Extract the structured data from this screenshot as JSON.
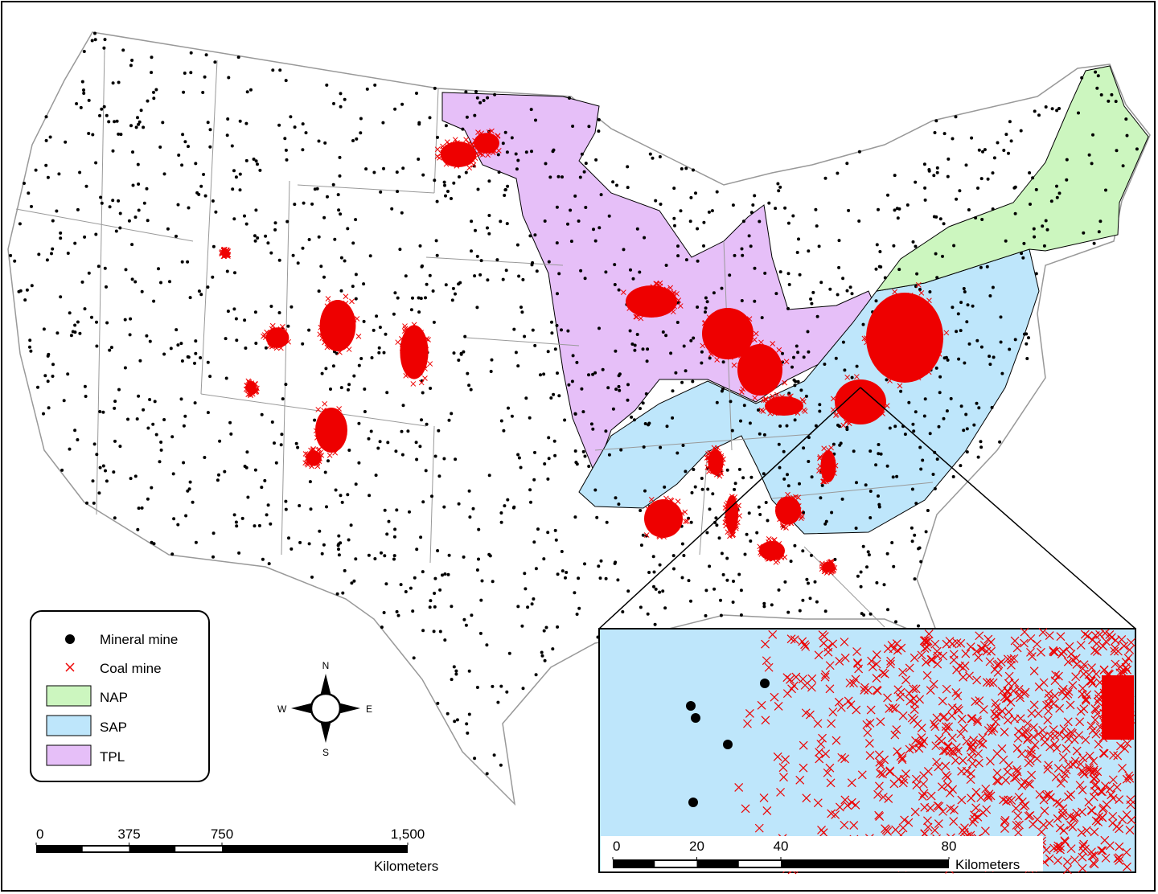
{
  "legend": [
    "Mineral mine",
    "Coal mine",
    "NAP",
    "SAP",
    "TPL"
  ],
  "compass": {
    "n": "N",
    "e": "E",
    "s": "S",
    "w": "W"
  },
  "scale_bar": {
    "ticks": [
      {
        "value": 0,
        "label": "0"
      },
      {
        "value": 375,
        "label": "375"
      },
      {
        "value": 750,
        "label": "750"
      },
      {
        "value": 1500,
        "label": "1,500"
      }
    ],
    "unit": "Kilometers"
  },
  "inset_scale_bar": {
    "ticks": [
      {
        "value": 0,
        "label": "0"
      },
      {
        "value": 20,
        "label": "20"
      },
      {
        "value": 40,
        "label": "40"
      },
      {
        "value": 80,
        "label": "80"
      }
    ],
    "unit": "Kilometers"
  }
}
